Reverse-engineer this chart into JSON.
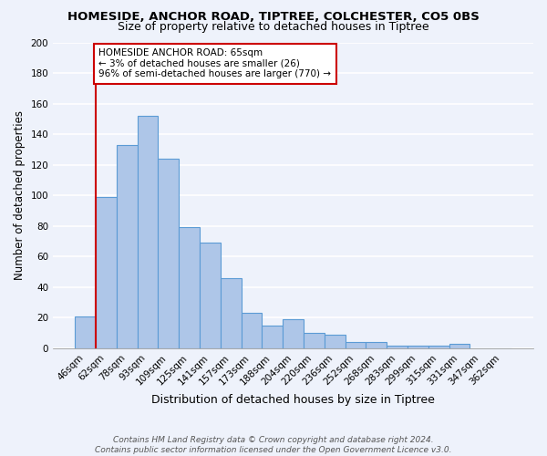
{
  "title": "HOMESIDE, ANCHOR ROAD, TIPTREE, COLCHESTER, CO5 0BS",
  "subtitle": "Size of property relative to detached houses in Tiptree",
  "xlabel": "Distribution of detached houses by size in Tiptree",
  "ylabel": "Number of detached properties",
  "categories": [
    "46sqm",
    "62sqm",
    "78sqm",
    "93sqm",
    "109sqm",
    "125sqm",
    "141sqm",
    "157sqm",
    "173sqm",
    "188sqm",
    "204sqm",
    "220sqm",
    "236sqm",
    "252sqm",
    "268sqm",
    "283sqm",
    "299sqm",
    "315sqm",
    "331sqm",
    "347sqm",
    "362sqm"
  ],
  "values": [
    21,
    99,
    133,
    152,
    124,
    79,
    69,
    46,
    23,
    15,
    19,
    10,
    9,
    4,
    4,
    2,
    2,
    2,
    3,
    0,
    0
  ],
  "bar_color": "#aec6e8",
  "bar_edge_color": "#5b9bd5",
  "background_color": "#eef2fb",
  "grid_color": "#ffffff",
  "red_line_index": 1,
  "annotation_text": "HOMESIDE ANCHOR ROAD: 65sqm\n← 3% of detached houses are smaller (26)\n96% of semi-detached houses are larger (770) →",
  "annotation_box_color": "#ffffff",
  "annotation_box_edge": "#cc0000",
  "red_line_color": "#cc0000",
  "footer_line1": "Contains HM Land Registry data © Crown copyright and database right 2024.",
  "footer_line2": "Contains public sector information licensed under the Open Government Licence v3.0.",
  "ylim": [
    0,
    200
  ],
  "yticks": [
    0,
    20,
    40,
    60,
    80,
    100,
    120,
    140,
    160,
    180,
    200
  ],
  "title_fontsize": 9.5,
  "subtitle_fontsize": 9.0,
  "ylabel_fontsize": 8.5,
  "xlabel_fontsize": 9.0,
  "tick_fontsize": 7.5,
  "annotation_fontsize": 7.5,
  "footer_fontsize": 6.5
}
